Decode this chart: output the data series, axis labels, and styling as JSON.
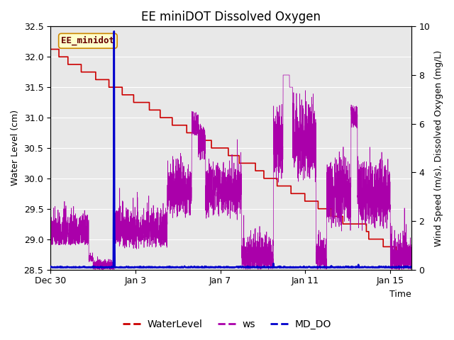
{
  "title": "EE miniDOT Dissolved Oxygen",
  "xlabel": "Time",
  "ylabel_left": "Water Level (cm)",
  "ylabel_right": "Wind Speed (m/s), Dissolved Oxygen (mg/L)",
  "sensor_label": "EE_minidot",
  "ylim_left": [
    28.5,
    32.5
  ],
  "ylim_right": [
    0.0,
    10.0
  ],
  "yticks_left": [
    28.5,
    29.0,
    29.5,
    30.0,
    30.5,
    31.0,
    31.5,
    32.0,
    32.5
  ],
  "yticks_right": [
    0.0,
    2.0,
    4.0,
    6.0,
    8.0,
    10.0
  ],
  "xtick_labels": [
    "Dec 30",
    "Jan 3",
    "Jan 7",
    "Jan 11",
    "Jan 15"
  ],
  "xtick_positions": [
    0,
    4,
    8,
    12,
    16
  ],
  "background_color": "#e8e8e8",
  "wl_color": "#cc0000",
  "ws_color": "#aa00aa",
  "do_color": "#0000cc",
  "legend_entries": [
    "WaterLevel",
    "ws",
    "MD_DO"
  ],
  "title_fontsize": 12,
  "label_fontsize": 9,
  "tick_fontsize": 9,
  "total_days": 17.0
}
